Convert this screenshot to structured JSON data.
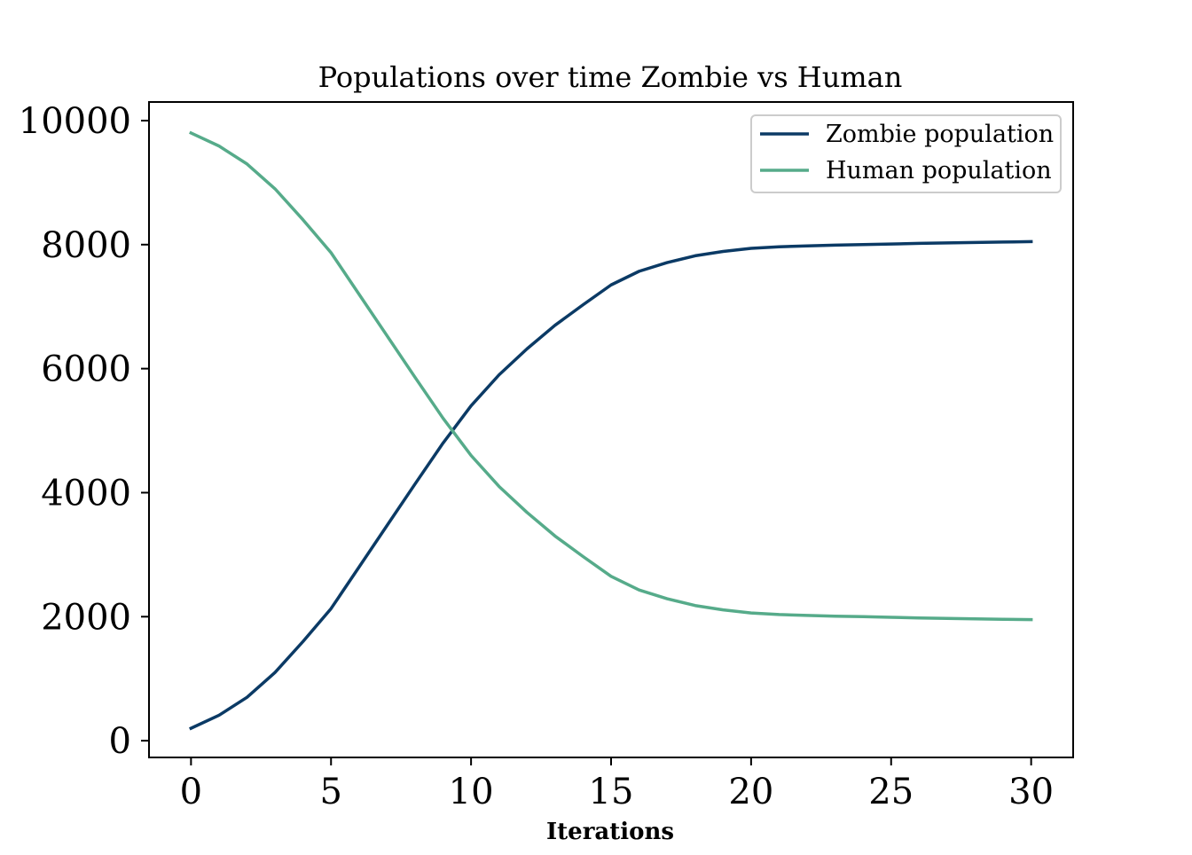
{
  "chart_data": {
    "type": "line",
    "title": "Populations over time Zombie vs Human",
    "xlabel": "Iterations",
    "ylabel": "",
    "xlim": [
      -1.5,
      31.5
    ],
    "ylim": [
      -270,
      10300
    ],
    "xticks": [
      0,
      5,
      10,
      15,
      20,
      25,
      30
    ],
    "yticks": [
      0,
      2000,
      4000,
      6000,
      8000,
      10000
    ],
    "grid": false,
    "legend": "top-right",
    "x": [
      0,
      1,
      2,
      3,
      4,
      5,
      6,
      7,
      8,
      9,
      10,
      11,
      12,
      13,
      14,
      15,
      16,
      17,
      18,
      19,
      20,
      21,
      22,
      23,
      24,
      25,
      26,
      27,
      28,
      29,
      30
    ],
    "series": [
      {
        "name": "Zombie population",
        "color": "#0b3a65",
        "values": [
          200,
          410,
          700,
          1100,
          1600,
          2130,
          2800,
          3470,
          4140,
          4800,
          5400,
          5900,
          6320,
          6700,
          7030,
          7350,
          7570,
          7710,
          7820,
          7890,
          7940,
          7965,
          7980,
          7992,
          8000,
          8010,
          8020,
          8028,
          8035,
          8042,
          8048
        ]
      },
      {
        "name": "Human population",
        "color": "#56ab8a",
        "values": [
          9800,
          9590,
          9300,
          8900,
          8400,
          7870,
          7200,
          6530,
          5860,
          5200,
          4600,
          4100,
          3680,
          3300,
          2970,
          2650,
          2430,
          2290,
          2180,
          2110,
          2060,
          2035,
          2020,
          2008,
          2000,
          1990,
          1980,
          1972,
          1965,
          1958,
          1952
        ]
      }
    ]
  }
}
